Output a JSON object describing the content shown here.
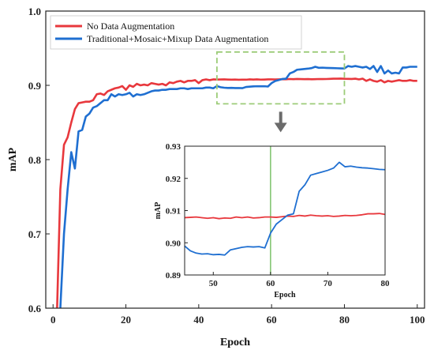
{
  "chart_data": [
    {
      "type": "line",
      "title": "",
      "xlabel": "Epoch",
      "ylabel": "mAP",
      "xlim": [
        -2,
        102
      ],
      "ylim": [
        0.6,
        1.0
      ],
      "xticks": [
        0,
        20,
        40,
        60,
        80,
        100
      ],
      "yticks": [
        0.6,
        0.7,
        0.8,
        0.9,
        1.0
      ],
      "xtick_labels": [
        "0",
        "20",
        "40",
        "60",
        "80",
        "100"
      ],
      "ytick_labels": [
        "0.6",
        "0.7",
        "0.8",
        "0.9",
        "1.0"
      ],
      "grid": false,
      "legend_position": "top-left",
      "series": [
        {
          "name": "No Data Augmentation",
          "color": "#e8383d",
          "x": [
            1,
            2,
            3,
            4,
            5,
            6,
            7,
            8,
            9,
            10,
            11,
            12,
            13,
            14,
            15,
            16,
            17,
            18,
            19,
            20,
            21,
            22,
            23,
            24,
            25,
            26,
            27,
            28,
            29,
            30,
            31,
            32,
            33,
            34,
            35,
            36,
            37,
            38,
            39,
            40,
            41,
            42,
            43,
            44,
            45,
            46,
            47,
            48,
            49,
            50,
            51,
            52,
            53,
            54,
            55,
            56,
            57,
            58,
            59,
            60,
            61,
            62,
            63,
            64,
            65,
            66,
            67,
            68,
            69,
            70,
            71,
            72,
            73,
            74,
            75,
            76,
            77,
            78,
            79,
            80,
            81,
            82,
            83,
            84,
            85,
            86,
            87,
            88,
            89,
            90,
            91,
            92,
            93,
            94,
            95,
            96,
            97,
            98,
            99,
            100
          ],
          "y": [
            0.58,
            0.76,
            0.82,
            0.83,
            0.85,
            0.868,
            0.876,
            0.877,
            0.878,
            0.878,
            0.88,
            0.888,
            0.889,
            0.887,
            0.892,
            0.894,
            0.896,
            0.897,
            0.899,
            0.894,
            0.9,
            0.898,
            0.902,
            0.9,
            0.901,
            0.9,
            0.903,
            0.902,
            0.901,
            0.902,
            0.9,
            0.904,
            0.903,
            0.905,
            0.906,
            0.904,
            0.906,
            0.906,
            0.907,
            0.903,
            0.907,
            0.908,
            0.907,
            0.908,
            0.9078,
            0.9079,
            0.908,
            0.9078,
            0.9076,
            0.9078,
            0.9075,
            0.9077,
            0.9076,
            0.908,
            0.9078,
            0.908,
            0.9077,
            0.9078,
            0.908,
            0.908,
            0.9079,
            0.9081,
            0.9083,
            0.9082,
            0.9085,
            0.9083,
            0.9086,
            0.9084,
            0.9083,
            0.9084,
            0.9082,
            0.9083,
            0.9085,
            0.9084,
            0.9085,
            0.9087,
            0.909,
            0.909,
            0.9091,
            0.9088,
            0.9087,
            0.9086,
            0.909,
            0.908,
            0.909,
            0.906,
            0.908,
            0.906,
            0.905,
            0.907,
            0.904,
            0.906,
            0.905,
            0.906,
            0.907,
            0.906,
            0.906,
            0.907,
            0.906,
            0.906
          ]
        },
        {
          "name": "Traditional+Mosaic+Mixup Data Augmentation",
          "color": "#1f6fd1",
          "x": [
            1,
            2,
            3,
            4,
            5,
            6,
            7,
            8,
            9,
            10,
            11,
            12,
            13,
            14,
            15,
            16,
            17,
            18,
            19,
            20,
            21,
            22,
            23,
            24,
            25,
            26,
            27,
            28,
            29,
            30,
            31,
            32,
            33,
            34,
            35,
            36,
            37,
            38,
            39,
            40,
            41,
            42,
            43,
            44,
            45,
            46,
            47,
            48,
            49,
            50,
            51,
            52,
            53,
            54,
            55,
            56,
            57,
            58,
            59,
            60,
            61,
            62,
            63,
            64,
            65,
            66,
            67,
            68,
            69,
            70,
            71,
            72,
            73,
            74,
            75,
            76,
            77,
            78,
            79,
            80,
            81,
            82,
            83,
            84,
            85,
            86,
            87,
            88,
            89,
            90,
            91,
            92,
            93,
            94,
            95,
            96,
            97,
            98,
            99,
            100
          ],
          "y": [
            0.55,
            0.6,
            0.7,
            0.76,
            0.81,
            0.788,
            0.838,
            0.84,
            0.858,
            0.862,
            0.87,
            0.872,
            0.876,
            0.88,
            0.88,
            0.888,
            0.885,
            0.888,
            0.887,
            0.888,
            0.89,
            0.885,
            0.888,
            0.887,
            0.888,
            0.89,
            0.892,
            0.893,
            0.893,
            0.894,
            0.894,
            0.895,
            0.895,
            0.895,
            0.896,
            0.896,
            0.895,
            0.896,
            0.896,
            0.896,
            0.896,
            0.897,
            0.897,
            0.896,
            0.899,
            0.8975,
            0.8968,
            0.8965,
            0.8966,
            0.8963,
            0.8964,
            0.8962,
            0.8978,
            0.8982,
            0.8986,
            0.8988,
            0.8987,
            0.8988,
            0.8984,
            0.903,
            0.9058,
            0.9072,
            0.9086,
            0.909,
            0.916,
            0.918,
            0.921,
            0.9215,
            0.922,
            0.9225,
            0.9232,
            0.925,
            0.9236,
            0.9238,
            0.9235,
            0.9233,
            0.9232,
            0.923,
            0.9228,
            0.9227,
            0.926,
            0.925,
            0.926,
            0.925,
            0.924,
            0.925,
            0.922,
            0.926,
            0.918,
            0.926,
            0.916,
            0.92,
            0.916,
            0.917,
            0.916,
            0.924,
            0.924,
            0.925,
            0.925,
            0.925
          ]
        }
      ]
    },
    {
      "type": "line",
      "title": "",
      "xlabel": "Epoch",
      "ylabel": "mAP",
      "xlim": [
        45,
        80
      ],
      "ylim": [
        0.89,
        0.93
      ],
      "xticks": [
        50,
        60,
        70,
        80
      ],
      "yticks": [
        0.89,
        0.9,
        0.91,
        0.92,
        0.93
      ],
      "xtick_labels": [
        "50",
        "60",
        "70",
        "80"
      ],
      "ytick_labels": [
        "0.89",
        "0.90",
        "0.91",
        "0.92",
        "0.93"
      ],
      "vline_x": 60,
      "grid": false,
      "series": [
        {
          "color": "#e8383d",
          "x": [
            45,
            46,
            47,
            48,
            49,
            50,
            51,
            52,
            53,
            54,
            55,
            56,
            57,
            58,
            59,
            60,
            61,
            62,
            63,
            64,
            65,
            66,
            67,
            68,
            69,
            70,
            71,
            72,
            73,
            74,
            75,
            76,
            77,
            78,
            79,
            80
          ],
          "y": [
            0.9078,
            0.9079,
            0.908,
            0.9078,
            0.9076,
            0.9078,
            0.9075,
            0.9077,
            0.9076,
            0.908,
            0.9078,
            0.908,
            0.9077,
            0.9078,
            0.908,
            0.908,
            0.9079,
            0.9081,
            0.9083,
            0.9082,
            0.9085,
            0.9083,
            0.9086,
            0.9084,
            0.9083,
            0.9084,
            0.9082,
            0.9083,
            0.9085,
            0.9084,
            0.9085,
            0.9087,
            0.909,
            0.909,
            0.9091,
            0.9088
          ]
        },
        {
          "color": "#1f6fd1",
          "x": [
            45,
            46,
            47,
            48,
            49,
            50,
            51,
            52,
            53,
            54,
            55,
            56,
            57,
            58,
            59,
            60,
            61,
            62,
            63,
            64,
            65,
            66,
            67,
            68,
            69,
            70,
            71,
            72,
            73,
            74,
            75,
            76,
            77,
            78,
            79,
            80
          ],
          "y": [
            0.899,
            0.8975,
            0.8968,
            0.8965,
            0.8966,
            0.8963,
            0.8964,
            0.8962,
            0.8978,
            0.8982,
            0.8986,
            0.8988,
            0.8987,
            0.8988,
            0.8984,
            0.903,
            0.9058,
            0.9072,
            0.9086,
            0.909,
            0.916,
            0.918,
            0.921,
            0.9215,
            0.922,
            0.9225,
            0.9232,
            0.925,
            0.9236,
            0.9238,
            0.9235,
            0.9233,
            0.9232,
            0.923,
            0.9228,
            0.9227
          ]
        }
      ]
    }
  ],
  "colors": {
    "zoom_box": "#9ccc78",
    "vline": "#7cc16a",
    "arrow": "#6b6b6b"
  }
}
